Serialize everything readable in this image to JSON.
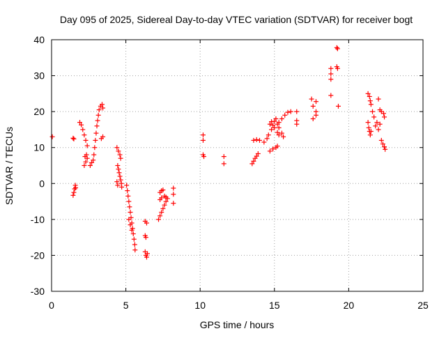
{
  "chart_data": {
    "type": "scatter",
    "title": "Day 095 of 2025, Sidereal Day-to-day VTEC variation (SDTVAR) for receiver bogt",
    "xlabel": "GPS time / hours",
    "ylabel": "SDTVAR / TECUs",
    "xlim": [
      0,
      25
    ],
    "ylim": [
      -30,
      40
    ],
    "xticks": [
      0,
      5,
      10,
      15,
      20,
      25
    ],
    "yticks": [
      -30,
      -20,
      -10,
      0,
      10,
      20,
      30,
      40
    ],
    "xtick_labels": [
      "0",
      "5",
      "10",
      "15",
      "20",
      "25"
    ],
    "ytick_labels": [
      "-30",
      "-20",
      "-10",
      "0",
      "10",
      "20",
      "30",
      "40"
    ],
    "grid": true,
    "marker": "+",
    "series": [
      {
        "name": "SDTVAR",
        "color": "#ff0000",
        "points": [
          [
            0.05,
            13
          ],
          [
            1.45,
            12.6
          ],
          [
            1.5,
            12.4
          ],
          [
            1.45,
            -3.3
          ],
          [
            1.5,
            -2.5
          ],
          [
            1.55,
            -1.5
          ],
          [
            1.6,
            -0.5
          ],
          [
            1.62,
            -1.2
          ],
          [
            1.9,
            17
          ],
          [
            2.0,
            16.3
          ],
          [
            2.1,
            15
          ],
          [
            2.2,
            13.5
          ],
          [
            2.3,
            12
          ],
          [
            2.4,
            10.5
          ],
          [
            2.2,
            5
          ],
          [
            2.3,
            6
          ],
          [
            2.25,
            7.5
          ],
          [
            2.35,
            8
          ],
          [
            2.4,
            7
          ],
          [
            2.6,
            5
          ],
          [
            2.7,
            5.8
          ],
          [
            2.8,
            6.5
          ],
          [
            2.85,
            8
          ],
          [
            2.9,
            10
          ],
          [
            2.95,
            12
          ],
          [
            3.0,
            14
          ],
          [
            3.05,
            16
          ],
          [
            3.1,
            17.5
          ],
          [
            3.15,
            19
          ],
          [
            3.2,
            20.5
          ],
          [
            3.3,
            21.5
          ],
          [
            3.4,
            22
          ],
          [
            3.45,
            21
          ],
          [
            3.35,
            12.5
          ],
          [
            3.45,
            13
          ],
          [
            4.4,
            10
          ],
          [
            4.5,
            9
          ],
          [
            4.6,
            8
          ],
          [
            4.65,
            7
          ],
          [
            4.45,
            5
          ],
          [
            4.5,
            4
          ],
          [
            4.55,
            3
          ],
          [
            4.6,
            2
          ],
          [
            4.65,
            1
          ],
          [
            4.7,
            0
          ],
          [
            4.72,
            -1
          ],
          [
            4.4,
            0.5
          ],
          [
            4.45,
            -0.5
          ],
          [
            5.05,
            -0.5
          ],
          [
            5.1,
            -2
          ],
          [
            5.15,
            -3.5
          ],
          [
            5.2,
            -5
          ],
          [
            5.25,
            -6.5
          ],
          [
            5.3,
            -8
          ],
          [
            5.35,
            -9.5
          ],
          [
            5.4,
            -11
          ],
          [
            5.45,
            -12.5
          ],
          [
            5.5,
            -14
          ],
          [
            5.55,
            -15.5
          ],
          [
            5.6,
            -17
          ],
          [
            5.62,
            -18.5
          ],
          [
            5.2,
            -10
          ],
          [
            5.3,
            -11.5
          ],
          [
            5.4,
            -13
          ],
          [
            6.3,
            -10.5
          ],
          [
            6.4,
            -11
          ],
          [
            6.3,
            -14.5
          ],
          [
            6.35,
            -15
          ],
          [
            6.3,
            -19
          ],
          [
            6.35,
            -20
          ],
          [
            6.4,
            -20.5
          ],
          [
            6.45,
            -19.5
          ],
          [
            7.2,
            -10
          ],
          [
            7.3,
            -9
          ],
          [
            7.4,
            -8
          ],
          [
            7.5,
            -7
          ],
          [
            7.6,
            -6
          ],
          [
            7.7,
            -5
          ],
          [
            7.8,
            -4.2
          ],
          [
            7.3,
            -4.5
          ],
          [
            7.4,
            -4
          ],
          [
            7.6,
            -3.5
          ],
          [
            7.7,
            -3.8
          ],
          [
            7.3,
            -2.5
          ],
          [
            7.4,
            -2
          ],
          [
            7.5,
            -1.8
          ],
          [
            8.2,
            -1.3
          ],
          [
            8.2,
            -3
          ],
          [
            8.2,
            -5.5
          ],
          [
            10.2,
            13.5
          ],
          [
            10.2,
            12
          ],
          [
            10.2,
            8
          ],
          [
            10.25,
            7.5
          ],
          [
            11.6,
            7.5
          ],
          [
            11.6,
            5.5
          ],
          [
            13.5,
            5.5
          ],
          [
            13.6,
            6.2
          ],
          [
            13.7,
            7
          ],
          [
            13.8,
            7.6
          ],
          [
            13.9,
            8.3
          ],
          [
            13.6,
            12
          ],
          [
            13.8,
            12.2
          ],
          [
            14.0,
            12
          ],
          [
            14.3,
            11.5
          ],
          [
            14.5,
            12.5
          ],
          [
            14.6,
            13.5
          ],
          [
            14.8,
            15
          ],
          [
            14.9,
            16.2
          ],
          [
            15.0,
            17.3
          ],
          [
            15.1,
            18
          ],
          [
            15.2,
            16.5
          ],
          [
            15.3,
            15.5
          ],
          [
            15.5,
            14
          ],
          [
            15.6,
            13
          ],
          [
            14.7,
            16.5
          ],
          [
            14.8,
            17.2
          ],
          [
            15.0,
            15.5
          ],
          [
            15.2,
            14.2
          ],
          [
            15.3,
            13.5
          ],
          [
            14.7,
            9
          ],
          [
            14.9,
            9.6
          ],
          [
            15.1,
            10
          ],
          [
            15.2,
            10.4
          ],
          [
            15.3,
            17
          ],
          [
            15.5,
            18
          ],
          [
            15.7,
            19
          ],
          [
            15.9,
            19.8
          ],
          [
            16.1,
            20
          ],
          [
            16.5,
            20
          ],
          [
            16.5,
            17.5
          ],
          [
            16.5,
            16.5
          ],
          [
            17.5,
            23.5
          ],
          [
            17.8,
            22.8
          ],
          [
            17.6,
            21.5
          ],
          [
            17.8,
            20
          ],
          [
            17.6,
            18
          ],
          [
            17.8,
            19
          ],
          [
            18.8,
            32
          ],
          [
            18.8,
            30.5
          ],
          [
            18.8,
            29
          ],
          [
            18.8,
            24.5
          ],
          [
            19.2,
            37.8
          ],
          [
            19.25,
            37.5
          ],
          [
            19.2,
            32.5
          ],
          [
            19.25,
            32
          ],
          [
            19.3,
            21.5
          ],
          [
            21.3,
            25
          ],
          [
            21.4,
            24.2
          ],
          [
            21.45,
            23
          ],
          [
            21.5,
            22
          ],
          [
            21.6,
            20
          ],
          [
            21.7,
            18.5
          ],
          [
            21.3,
            17
          ],
          [
            21.35,
            15.5
          ],
          [
            21.4,
            14.5
          ],
          [
            21.45,
            13.5
          ],
          [
            21.5,
            14.5
          ],
          [
            21.8,
            16
          ],
          [
            21.9,
            17
          ],
          [
            22.0,
            15
          ],
          [
            22.1,
            16.5
          ],
          [
            22.0,
            23.5
          ],
          [
            22.1,
            20.5
          ],
          [
            22.2,
            20
          ],
          [
            22.35,
            19.5
          ],
          [
            22.4,
            18.5
          ],
          [
            22.2,
            12
          ],
          [
            22.3,
            11
          ],
          [
            22.4,
            10.2
          ],
          [
            22.45,
            9.5
          ]
        ]
      }
    ]
  }
}
